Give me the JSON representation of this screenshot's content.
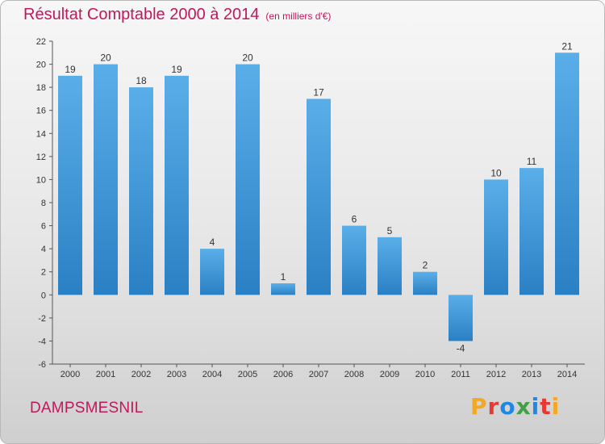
{
  "header": {
    "title": "Résultat Comptable 2000 à 2014",
    "subtitle": "(en milliers d'€)"
  },
  "footer": {
    "commune": "DAMPSMESNIL",
    "logo_text": "Proxiti",
    "logo_colors": [
      "#f5a623",
      "#e53935",
      "#1e88e5",
      "#43a047",
      "#1e88e5",
      "#e53935",
      "#f5a623"
    ]
  },
  "chart_data": {
    "type": "bar",
    "categories": [
      "2000",
      "2001",
      "2002",
      "2003",
      "2004",
      "2005",
      "2006",
      "2007",
      "2008",
      "2009",
      "2010",
      "2011",
      "2012",
      "2013",
      "2014"
    ],
    "values": [
      19,
      20,
      18,
      19,
      4,
      20,
      1,
      17,
      6,
      5,
      2,
      -4,
      10,
      11,
      21
    ],
    "title": "Résultat Comptable 2000 à 2014",
    "ylim": [
      -6,
      22
    ],
    "yticks": [
      -6,
      -4,
      -2,
      0,
      2,
      4,
      6,
      8,
      10,
      12,
      14,
      16,
      18,
      20,
      22
    ],
    "grid": false,
    "data_labels": true,
    "bar_color_top": "#5aaee8",
    "bar_color_bottom": "#2a80c4"
  }
}
